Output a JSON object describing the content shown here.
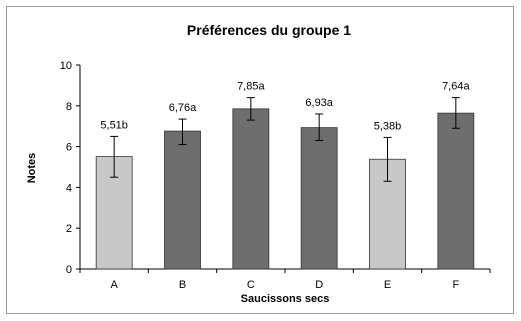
{
  "chart_data": {
    "type": "bar",
    "title": "Préférences du groupe 1",
    "xlabel": "Saucissons secs",
    "ylabel": "Notes",
    "ylim": [
      0,
      10
    ],
    "yticks": [
      0,
      2,
      4,
      6,
      8,
      10
    ],
    "grid": false,
    "legend": "none",
    "categories": [
      "A",
      "B",
      "C",
      "D",
      "E",
      "F"
    ],
    "values": [
      5.51,
      6.76,
      7.85,
      6.93,
      5.38,
      7.64
    ],
    "error_low": [
      4.5,
      6.1,
      7.3,
      6.3,
      4.3,
      6.9
    ],
    "error_high": [
      6.5,
      7.35,
      8.4,
      7.6,
      6.45,
      8.4
    ],
    "data_labels": [
      "5,51b",
      "6,76a",
      "7,85a",
      "6,93a",
      "5,38b",
      "7,64a"
    ],
    "bar_colors": [
      "#c8c8c8",
      "#6e6e6e",
      "#6e6e6e",
      "#6e6e6e",
      "#c8c8c8",
      "#6e6e6e"
    ]
  }
}
